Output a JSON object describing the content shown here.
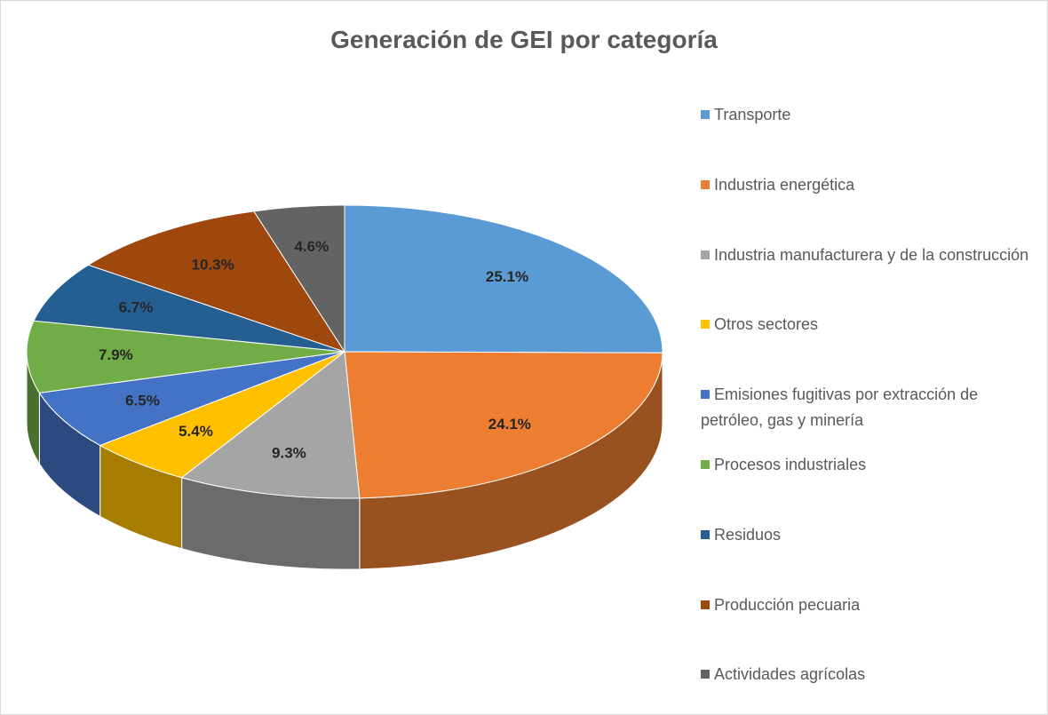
{
  "chart_data": {
    "type": "pie",
    "title": "Generación de GEI por categoría",
    "categories": [
      "Transporte",
      "Industria energética",
      "Industria manufacturera y de la construcción",
      "Otros sectores",
      "Emisiones fugitivas por extracción de petróleo, gas y minería",
      "Procesos industriales",
      "Residuos",
      "Producción pecuaria",
      "Actividades agrícolas"
    ],
    "values": [
      25.1,
      24.1,
      9.3,
      5.4,
      6.5,
      7.9,
      6.7,
      10.3,
      4.6
    ],
    "value_labels": [
      "25.1%",
      "24.1%",
      "9.3%",
      "5.4%",
      "6.5%",
      "7.9%",
      "6.7%",
      "10.3%",
      "4.6%"
    ],
    "colors": [
      "#5b9bd5",
      "#ed7d31",
      "#a5a5a5",
      "#ffc000",
      "#4472c4",
      "#70ad47",
      "#255e91",
      "#9e480e",
      "#636363"
    ],
    "legend": "right"
  }
}
